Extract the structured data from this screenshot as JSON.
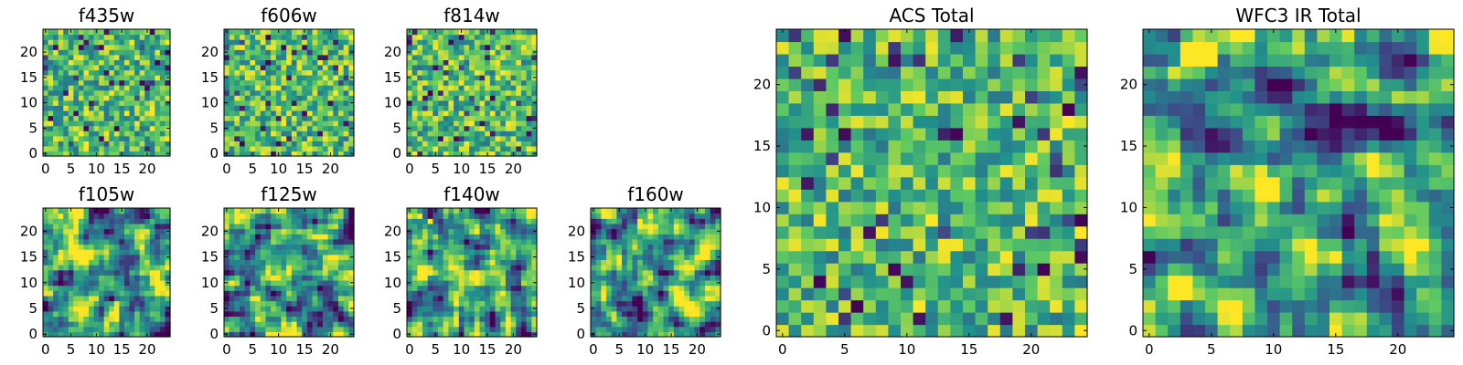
{
  "figure": {
    "colormap": [
      "#440154",
      "#3b528b",
      "#21918c",
      "#5ec962",
      "#fde725"
    ]
  },
  "chart_data": [
    {
      "type": "heatmap",
      "title": "f435w",
      "grid_size": 25,
      "xticks": [
        "0",
        "5",
        "10",
        "15",
        "20"
      ],
      "yticks": [
        "0",
        "5",
        "10",
        "15",
        "20"
      ],
      "xlim": [
        0,
        25
      ],
      "ylim": [
        0,
        25
      ],
      "seed": 11,
      "style": "noise",
      "hot": []
    },
    {
      "type": "heatmap",
      "title": "f606w",
      "grid_size": 25,
      "xticks": [
        "0",
        "5",
        "10",
        "15",
        "20"
      ],
      "yticks": [
        "0",
        "5",
        "10",
        "15",
        "20"
      ],
      "xlim": [
        0,
        25
      ],
      "ylim": [
        0,
        25
      ],
      "seed": 23,
      "style": "noise",
      "hot": []
    },
    {
      "type": "heatmap",
      "title": "f814w",
      "grid_size": 25,
      "xticks": [
        "0",
        "5",
        "10",
        "15",
        "20"
      ],
      "yticks": [
        "0",
        "5",
        "10",
        "15",
        "20"
      ],
      "xlim": [
        0,
        25
      ],
      "ylim": [
        0,
        25
      ],
      "seed": 37,
      "style": "noise",
      "hot": [
        [
          2,
          23
        ]
      ]
    },
    {
      "type": "heatmap",
      "title": "f105w",
      "grid_size": 25,
      "xticks": [
        "0",
        "5",
        "10",
        "15",
        "20"
      ],
      "yticks": [
        "0",
        "5",
        "10",
        "15",
        "20"
      ],
      "xlim": [
        0,
        25
      ],
      "ylim": [
        0,
        25
      ],
      "seed": 41,
      "style": "smooth",
      "hot": [
        [
          3,
          23
        ]
      ]
    },
    {
      "type": "heatmap",
      "title": "f125w",
      "grid_size": 25,
      "xticks": [
        "0",
        "5",
        "10",
        "15",
        "20"
      ],
      "yticks": [
        "0",
        "5",
        "10",
        "15",
        "20"
      ],
      "xlim": [
        0,
        25
      ],
      "ylim": [
        0,
        25
      ],
      "seed": 53,
      "style": "smooth",
      "hot": [
        [
          3,
          23
        ]
      ]
    },
    {
      "type": "heatmap",
      "title": "f140w",
      "grid_size": 25,
      "xticks": [
        "0",
        "5",
        "10",
        "15",
        "20"
      ],
      "yticks": [
        "0",
        "5",
        "10",
        "15",
        "20"
      ],
      "xlim": [
        0,
        25
      ],
      "ylim": [
        0,
        25
      ],
      "seed": 67,
      "style": "smooth",
      "hot": [
        [
          2,
          23
        ],
        [
          4,
          22
        ]
      ]
    },
    {
      "type": "heatmap",
      "title": "f160w",
      "grid_size": 25,
      "xticks": [
        "0",
        "5",
        "10",
        "15",
        "20"
      ],
      "yticks": [
        "0",
        "5",
        "10",
        "15",
        "20"
      ],
      "xlim": [
        0,
        25
      ],
      "ylim": [
        0,
        25
      ],
      "seed": 79,
      "style": "smooth",
      "hot": [
        [
          2,
          23
        ]
      ]
    },
    {
      "type": "heatmap",
      "title": "ACS Total",
      "grid_size": 25,
      "xticks": [
        "0",
        "5",
        "10",
        "15",
        "20"
      ],
      "yticks": [
        "0",
        "5",
        "10",
        "15",
        "20"
      ],
      "xlim": [
        0,
        25
      ],
      "ylim": [
        0,
        25
      ],
      "seed": 89,
      "style": "noise",
      "hot": []
    },
    {
      "type": "heatmap",
      "title": "WFC3 IR Total",
      "grid_size": 25,
      "xticks": [
        "0",
        "5",
        "10",
        "15",
        "20"
      ],
      "yticks": [
        "0",
        "5",
        "10",
        "15",
        "20"
      ],
      "xlim": [
        0,
        25
      ],
      "ylim": [
        0,
        25
      ],
      "seed": 97,
      "style": "smooth",
      "hot": [
        [
          3,
          23
        ],
        [
          4,
          23
        ],
        [
          5,
          23
        ],
        [
          3,
          22
        ],
        [
          4,
          22
        ],
        [
          5,
          22
        ]
      ]
    }
  ]
}
